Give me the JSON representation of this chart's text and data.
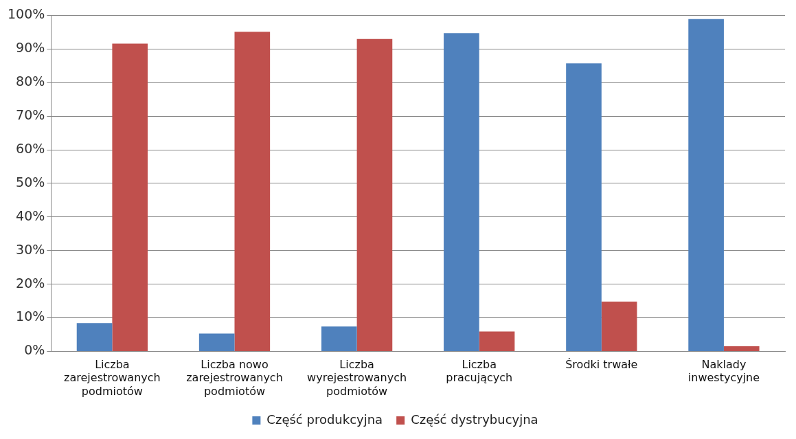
{
  "chart_data": {
    "type": "bar",
    "categories": [
      "Liczba zarejestrowanych podmiotów",
      "Liczba nowo zarejestrowanych podmiotów",
      "Liczba wyrejestrowanych podmiotów",
      "Liczba pracujących",
      "Środki trwałe",
      "Naklady inwestycyjne"
    ],
    "series": [
      {
        "name": "Część produkcyjna",
        "color": "#4f81bd",
        "values": [
          8.4,
          5.3,
          7.4,
          94.7,
          85.7,
          98.9
        ]
      },
      {
        "name": "Część dystrybucyjna",
        "color": "#c0504d",
        "values": [
          91.6,
          95.1,
          93.0,
          5.9,
          14.8,
          1.5
        ]
      }
    ],
    "ylim": [
      0,
      100
    ],
    "yticks": [
      {
        "value": 0,
        "label": "0%"
      },
      {
        "value": 10,
        "label": "10%"
      },
      {
        "value": 20,
        "label": "20%"
      },
      {
        "value": 30,
        "label": "30%"
      },
      {
        "value": 40,
        "label": "40%"
      },
      {
        "value": 50,
        "label": "50%"
      },
      {
        "value": 60,
        "label": "60%"
      },
      {
        "value": 70,
        "label": "70%"
      },
      {
        "value": 80,
        "label": "80%"
      },
      {
        "value": 90,
        "label": "90%"
      },
      {
        "value": 100,
        "label": "100%"
      }
    ],
    "grid": "y",
    "legend": "bottom"
  }
}
